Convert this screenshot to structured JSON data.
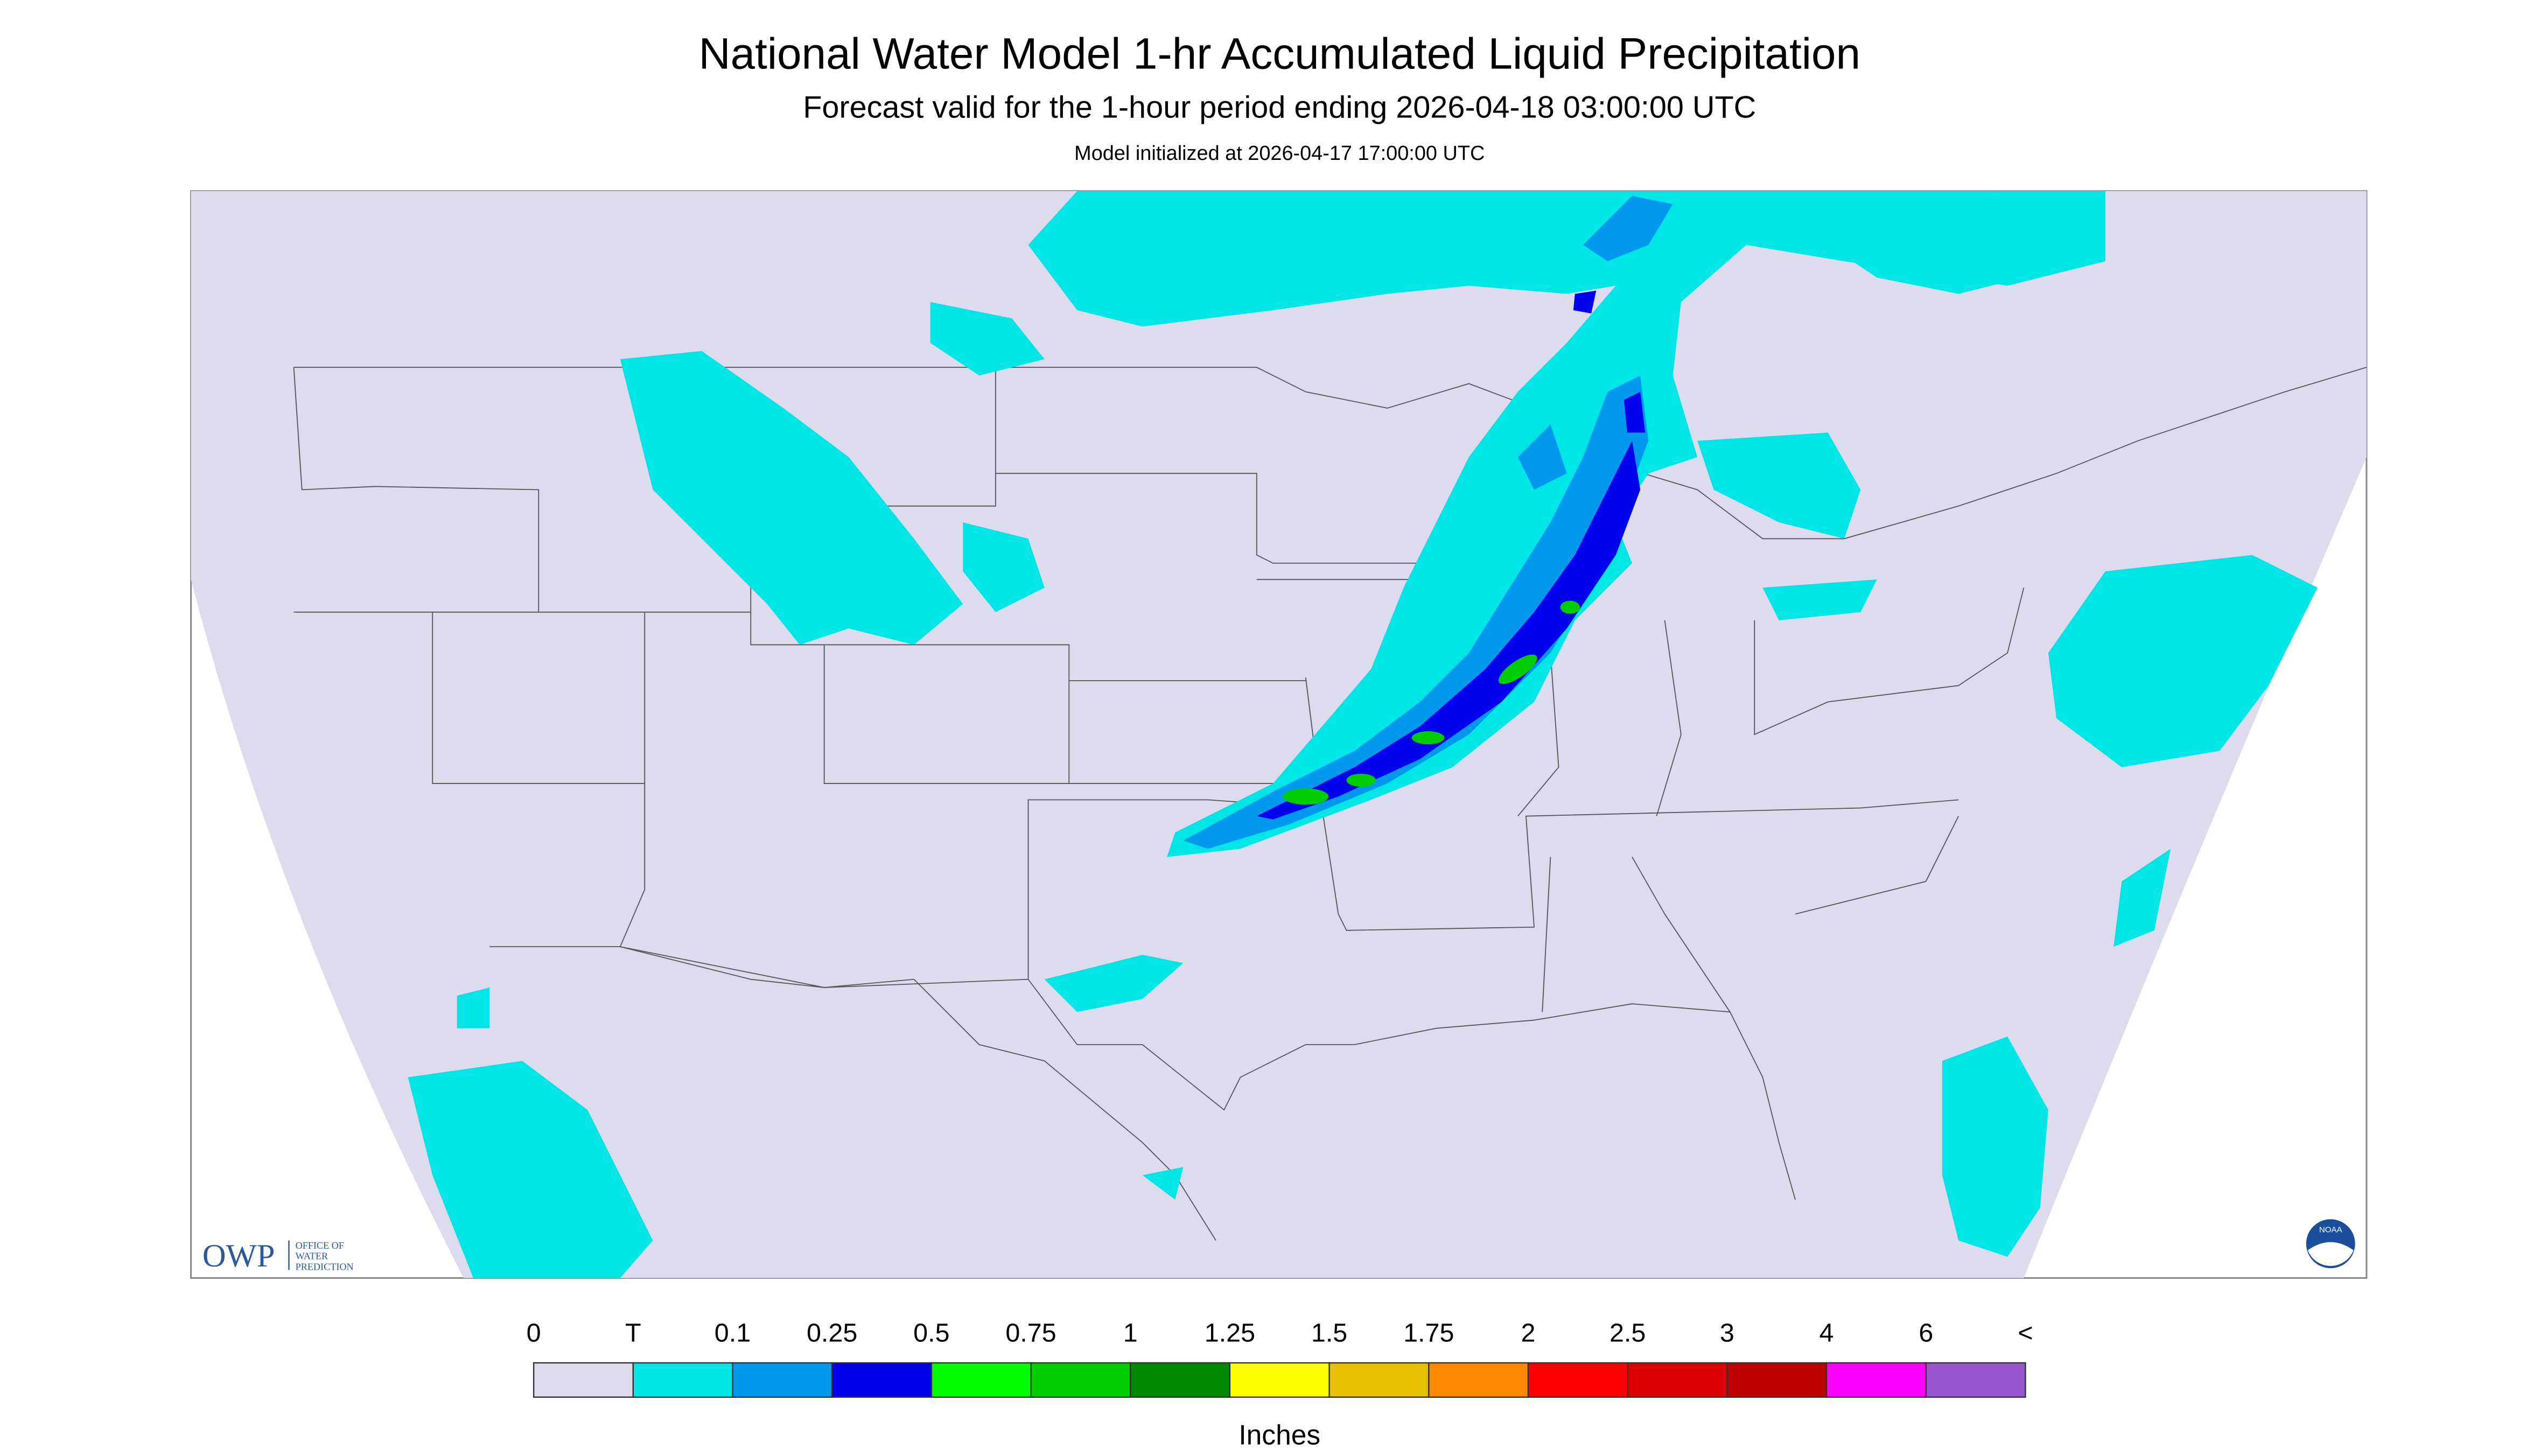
{
  "header": {
    "title": "National Water Model 1-hr Accumulated Liquid Precipitation",
    "subtitle": "Forecast valid for the 1-hour period ending 2026-04-18 03:00:00 UTC",
    "note": "Model initialized at 2026-04-17 17:00:00 UTC"
  },
  "legend": {
    "labels": [
      "0",
      "T",
      "0.1",
      "0.25",
      "0.5",
      "0.75",
      "1",
      "1.25",
      "1.5",
      "1.75",
      "2",
      "2.5",
      "3",
      "4",
      "6",
      "<"
    ],
    "colors": [
      "#dcdcee",
      "#00e5e5",
      "#0099ee",
      "#0000ee",
      "#00ff00",
      "#00cc00",
      "#008800",
      "#ffff00",
      "#e6c000",
      "#ff8800",
      "#ff0000",
      "#dd0000",
      "#bb0000",
      "#ff00ff",
      "#9955cc"
    ],
    "unit": "Inches"
  },
  "logos": {
    "owp": "OWP",
    "owp_full": [
      "OFFICE OF",
      "WATER",
      "PREDICTION"
    ],
    "noaa": "NOAA"
  }
}
